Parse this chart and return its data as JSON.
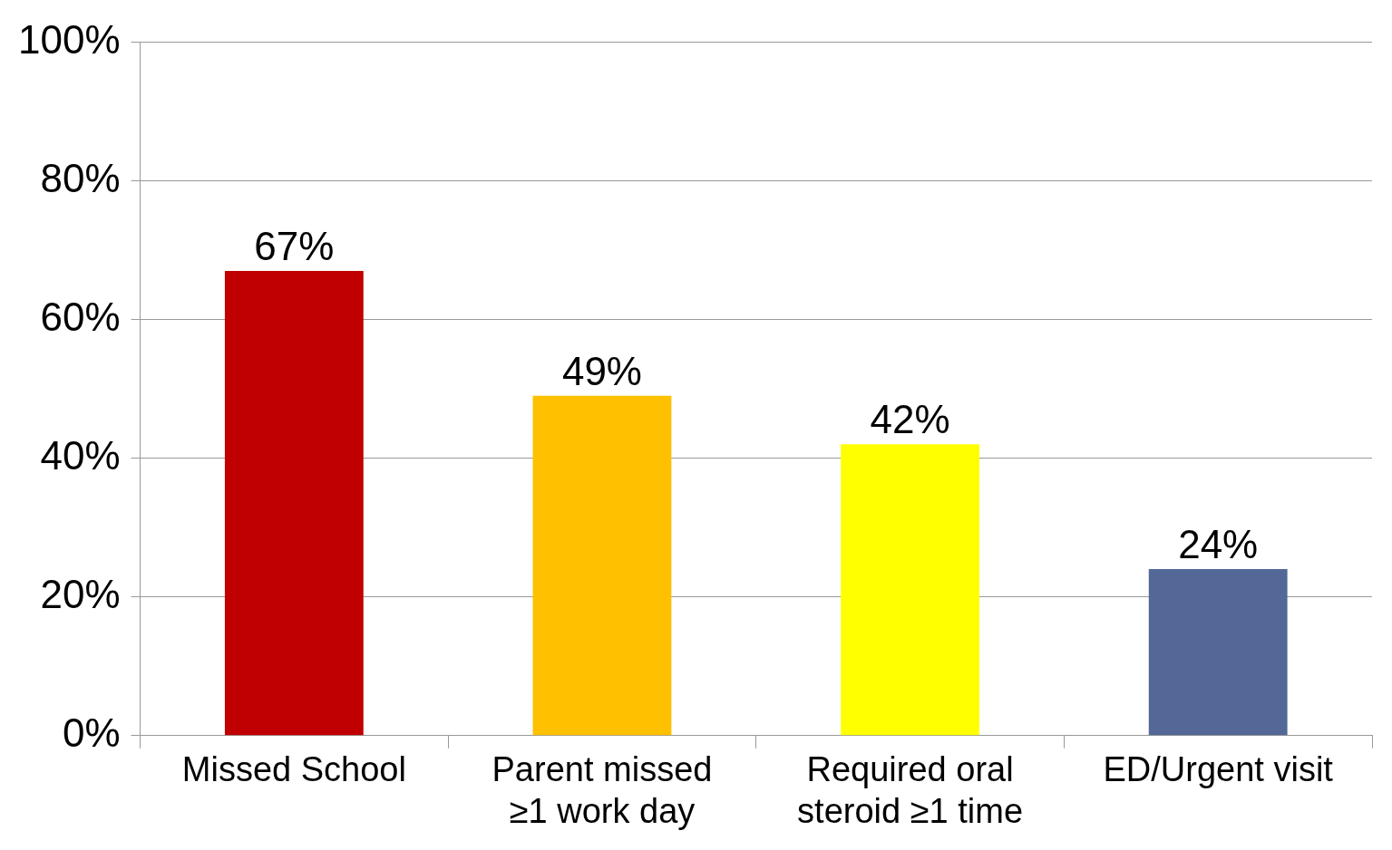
{
  "chart_data": {
    "type": "bar",
    "categories": [
      "Missed School",
      "Parent missed ≥1 work day",
      "Required oral steroid ≥1 time",
      "ED/Urgent visit"
    ],
    "values": [
      67,
      49,
      42,
      24
    ],
    "colors": [
      "#c00000",
      "#ffc000",
      "#ffff00",
      "#536897"
    ],
    "value_labels": [
      "67%",
      "49%",
      "42%",
      "24%"
    ],
    "ylim": [
      0,
      100
    ],
    "yticks": [
      {
        "value": 0,
        "label": "0%"
      },
      {
        "value": 20,
        "label": "20%"
      },
      {
        "value": 40,
        "label": "40%"
      },
      {
        "value": 60,
        "label": "60%"
      },
      {
        "value": 80,
        "label": "80%"
      },
      {
        "value": 100,
        "label": "100%"
      }
    ],
    "grid": "y"
  }
}
